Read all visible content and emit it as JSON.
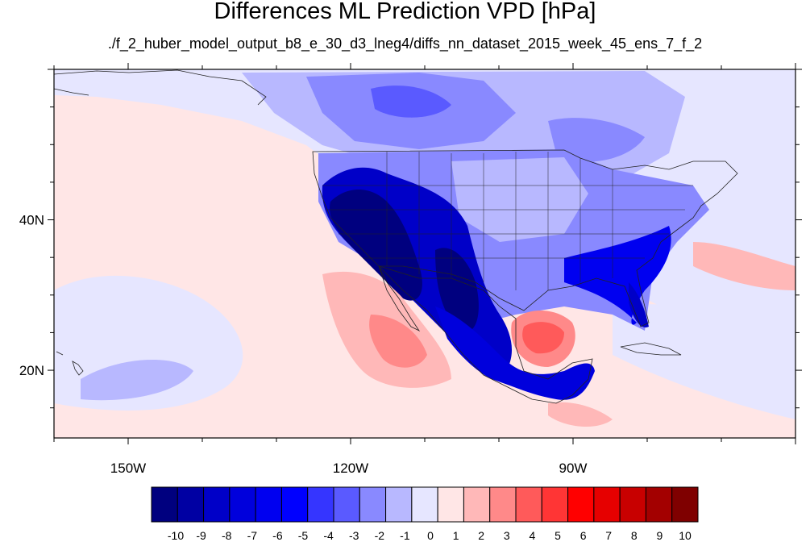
{
  "title": "Differences ML Prediction VPD [hPa]",
  "subtitle": "./f_2_huber_model_output_b8_e_30_d3_lneg4/diffs_nn_dataset_2015_week_45_ens_7_f_2",
  "map": {
    "lon_range": [
      -160,
      -60
    ],
    "lat_range": [
      11,
      60
    ],
    "lon_ticks": [
      {
        "value": -150,
        "label": "150W"
      },
      {
        "value": -120,
        "label": "120W"
      },
      {
        "value": -90,
        "label": "90W"
      }
    ],
    "lat_ticks": [
      {
        "value": 40,
        "label": "40N"
      },
      {
        "value": 20,
        "label": "20N"
      }
    ]
  },
  "colorbar": {
    "labels": [
      "-10",
      "-9",
      "-8",
      "-7",
      "-6",
      "-5",
      "-4",
      "-3",
      "-2",
      "-1",
      "0",
      "1",
      "2",
      "3",
      "4",
      "5",
      "6",
      "7",
      "8",
      "9",
      "10"
    ],
    "colors": [
      "#00007f",
      "#0000a3",
      "#0000c8",
      "#0000dc",
      "#0000f0",
      "#0000ff",
      "#3535ff",
      "#5a5aff",
      "#8989ff",
      "#b8b8ff",
      "#e6e6ff",
      "#ffe6e6",
      "#ffb8b8",
      "#ff8989",
      "#ff5a5a",
      "#ff3535",
      "#ff0000",
      "#e60000",
      "#c80000",
      "#a30000",
      "#7f0000"
    ]
  }
}
